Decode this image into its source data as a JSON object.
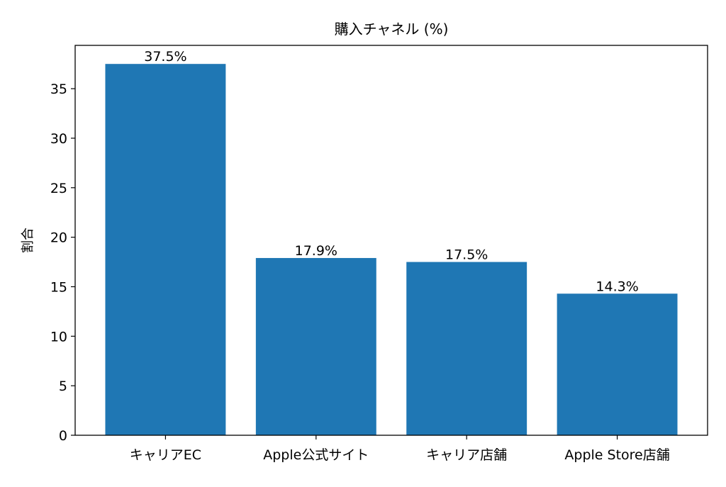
{
  "chart_data": {
    "type": "bar",
    "title": "購入チャネル (%)",
    "xlabel": "",
    "ylabel": "割合",
    "categories": [
      "キャリアEC",
      "Apple公式サイト",
      "キャリア店舗",
      "Apple Store店舗"
    ],
    "values": [
      37.5,
      17.9,
      17.5,
      14.3
    ],
    "data_labels": [
      "37.5%",
      "17.9%",
      "17.5%",
      "14.3%"
    ],
    "ylim": [
      0,
      39.375
    ],
    "yticks": [
      0,
      5,
      10,
      15,
      20,
      25,
      30,
      35
    ],
    "grid": false,
    "bar_color": "#1f77b4"
  }
}
